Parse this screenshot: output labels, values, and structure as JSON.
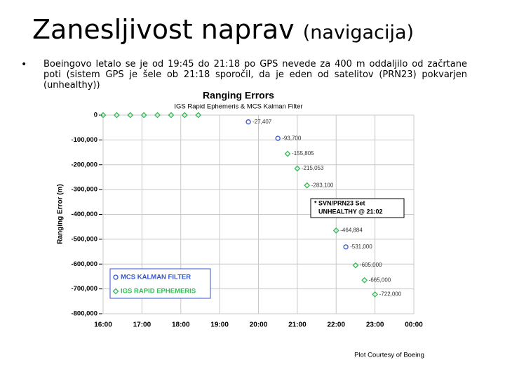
{
  "slide": {
    "title": "Zanesljivost naprav",
    "title_note": "(navigacija)",
    "bullet": "Boeingovo letalo se je od 19:45 do 21:18 po GPS nevede za 400 m oddaljilo od začrtane poti (sistem GPS je šele ob 21:18 sporočil, da je eden od satelitov (PRN23) pokvarjen (unhealthy))"
  },
  "chart_data": {
    "type": "scatter",
    "title": "Ranging Errors",
    "subtitle": "IGS Rapid Ephemeris & MCS Kalman Filter",
    "y_label": "Ranging Error (m)",
    "credit": "Plot Courtesy of Boeing",
    "annotation": [
      "* SVN/PRN23 Set",
      "UNHEALTHY @ 21:02"
    ],
    "xlim": [
      16,
      24
    ],
    "xticks": [
      {
        "value": 16,
        "label": "16:00"
      },
      {
        "value": 17,
        "label": "17:00"
      },
      {
        "value": 18,
        "label": "18:00"
      },
      {
        "value": 19,
        "label": "19:00"
      },
      {
        "value": 20,
        "label": "20:00"
      },
      {
        "value": 21,
        "label": "21:00"
      },
      {
        "value": 22,
        "label": "22:00"
      },
      {
        "value": 23,
        "label": "23:00"
      },
      {
        "value": 24,
        "label": "00:00"
      }
    ],
    "ylim": [
      -800000,
      0
    ],
    "yticks": [
      0,
      {
        "value": -100000,
        "label": "-100,000"
      },
      {
        "value": -200000,
        "label": "-200,000"
      },
      {
        "value": -300000,
        "label": "-300,000"
      },
      {
        "value": -400000,
        "label": "-400,000"
      },
      {
        "value": -500000,
        "label": "-500,000"
      },
      {
        "value": -600000,
        "label": "-600,000"
      },
      {
        "value": -700000,
        "label": "-700,000"
      },
      {
        "value": -800000,
        "label": "-800,000"
      }
    ],
    "grid": true,
    "legend": "lower left",
    "series": [
      {
        "name": "MCS KALMAN FILTER",
        "color": "#3355cc",
        "marker": "circle",
        "x": [
          19.74,
          20.5,
          22.25
        ],
        "values": [
          -27407,
          -93700,
          -531000
        ],
        "value_labels": [
          "-27,407",
          "-93,700",
          "-531,000"
        ]
      },
      {
        "name": "IGS RAPID EPHEMERIS",
        "color": "#33bb55",
        "marker": "star",
        "x": [
          16.0,
          16.35,
          16.7,
          17.05,
          17.4,
          17.75,
          18.1,
          18.45,
          20.75,
          21.0,
          21.25,
          22.0,
          22.5,
          22.73,
          23.0
        ],
        "values": [
          0,
          0,
          0,
          0,
          0,
          0,
          0,
          0,
          -155805,
          -215053,
          -283100,
          -464884,
          -605000,
          -665000,
          -722000
        ],
        "value_labels": [
          null,
          null,
          null,
          null,
          null,
          null,
          null,
          null,
          "-155,805",
          "-215,053",
          "-283,100",
          "-464,884",
          "-605,000",
          "-665,000",
          "-722,000"
        ]
      }
    ]
  }
}
